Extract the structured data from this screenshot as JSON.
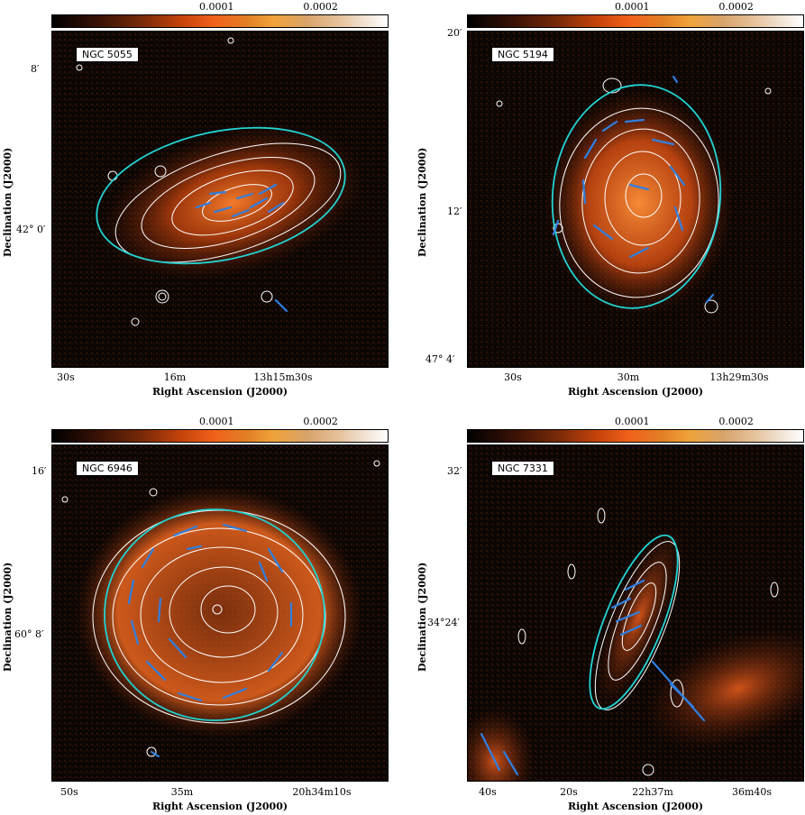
{
  "colorbar": {
    "ticks": [
      "0.0001",
      "0.0002"
    ]
  },
  "panels": [
    {
      "id": "ngc5055",
      "label": "NGC 5055",
      "x_ticks": [
        "30s",
        "16m",
        "13h15m30s"
      ],
      "y_ticks": [
        "8′",
        "42° 0′"
      ],
      "xlabel": "Right Ascension (J2000)",
      "ylabel": "Declination (J2000)"
    },
    {
      "id": "ngc5194",
      "label": "NGC 5194",
      "x_ticks": [
        "30s",
        "30m",
        "13h29m30s"
      ],
      "y_ticks": [
        "20′",
        "12′",
        "47° 4′"
      ],
      "xlabel": "Right Ascension (J2000)",
      "ylabel": "Declination (J2000)"
    },
    {
      "id": "ngc6946",
      "label": "NGC 6946",
      "x_ticks": [
        "50s",
        "35m",
        "20h34m10s"
      ],
      "y_ticks": [
        "16′",
        "60° 8′"
      ],
      "xlabel": "Right Ascension (J2000)",
      "ylabel": "Declination (J2000)"
    },
    {
      "id": "ngc7331",
      "label": "NGC 7331",
      "x_ticks": [
        "40s",
        "20s",
        "22h37m",
        "36m40s"
      ],
      "y_ticks": [
        "32′",
        "34°24′"
      ],
      "xlabel": "Right Ascension (J2000)",
      "ylabel": "Declination (J2000)"
    }
  ],
  "colors": {
    "background": "#0b0604",
    "emission": "#e2561a",
    "contour": "#ffffff",
    "ellipse": "#22d3d3",
    "vectors": "#2f7fe0"
  }
}
